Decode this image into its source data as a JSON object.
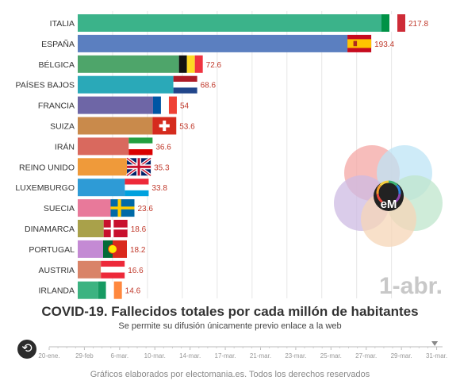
{
  "chart_data": {
    "type": "bar",
    "orientation": "horizontal",
    "title": "COVID-19. Fallecidos totales por cada millón de habitantes",
    "subtitle": "Se permite su difusión únicamente previo enlace a la web",
    "current_date": "1-abr.",
    "categories": [
      "ITALIA",
      "ESPAÑA",
      "BÉLGICA",
      "PAÍSES BAJOS",
      "FRANCIA",
      "SUIZA",
      "IRÁN",
      "REINO UNIDO",
      "LUXEMBURGO",
      "SUECIA",
      "DINAMARCA",
      "PORTUGAL",
      "AUSTRIA",
      "IRLANDA"
    ],
    "values": [
      217.8,
      193.4,
      72.6,
      68.6,
      54,
      53.6,
      36.6,
      35.3,
      33.8,
      23.6,
      18.6,
      18.2,
      16.6,
      14.6
    ],
    "value_labels": [
      "217.8",
      "193.4",
      "72.6",
      "68.6",
      "54",
      "53.6",
      "36.6",
      "35.3",
      "33.8",
      "23.6",
      "18.6",
      "18.2",
      "16.6",
      "14.6"
    ],
    "bar_colors": [
      "#3bb38a",
      "#5b7fc0",
      "#4ea56a",
      "#2aa9b8",
      "#6e66a6",
      "#c98a4b",
      "#d9695e",
      "#ef9a3a",
      "#2e9bd6",
      "#e8799a",
      "#a9a14a",
      "#c48ad4",
      "#d98368",
      "#3cb381"
    ],
    "xlim": [
      0,
      230
    ],
    "grid": true,
    "timeline_ticks": [
      "20-ene.",
      "29-feb",
      "6-mar.",
      "10-mar.",
      "14-mar.",
      "17-mar.",
      "21-mar.",
      "23-mar.",
      "25-mar.",
      "27-mar.",
      "29-mar.",
      "31-mar."
    ],
    "timeline_progress": 0.98
  },
  "footer": "Gráficos elaborados por electomania.es. Todos los derechos reservados",
  "logo_text": "eM"
}
